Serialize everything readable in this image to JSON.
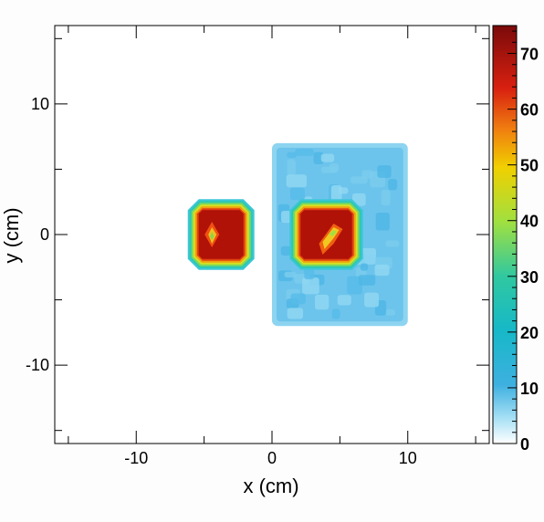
{
  "chart_data": {
    "type": "heatmap",
    "title": "",
    "xlabel": "x (cm)",
    "ylabel": "y (cm)",
    "xlim": [
      -16,
      16
    ],
    "ylim": [
      -16,
      16
    ],
    "x_ticks": [
      -10,
      0,
      10
    ],
    "y_ticks": [
      -10,
      0,
      10
    ],
    "x_tick_labels": [
      "-10",
      "0",
      "10"
    ],
    "y_tick_labels": [
      "-10",
      "0",
      "10"
    ],
    "colorbar": {
      "min": 0,
      "max": 75,
      "ticks": [
        0,
        10,
        20,
        30,
        40,
        50,
        60,
        70
      ],
      "tick_labels": [
        "0",
        "10",
        "20",
        "30",
        "40",
        "50",
        "60",
        "70"
      ]
    },
    "regions": [
      {
        "shape": "rect",
        "x": [
          0,
          10
        ],
        "y": [
          -7,
          7
        ],
        "value": 8,
        "description": "diffuse rectangular region"
      },
      {
        "shape": "octagon",
        "x": [
          -6,
          -1.5
        ],
        "y": [
          -2.5,
          2.5
        ],
        "value": 75,
        "peak_value": 50,
        "description": "left source"
      },
      {
        "shape": "octagon",
        "x": [
          1.5,
          6.5
        ],
        "y": [
          -2.5,
          2.5
        ],
        "value": 75,
        "peak_value": 50,
        "description": "right source"
      }
    ]
  }
}
